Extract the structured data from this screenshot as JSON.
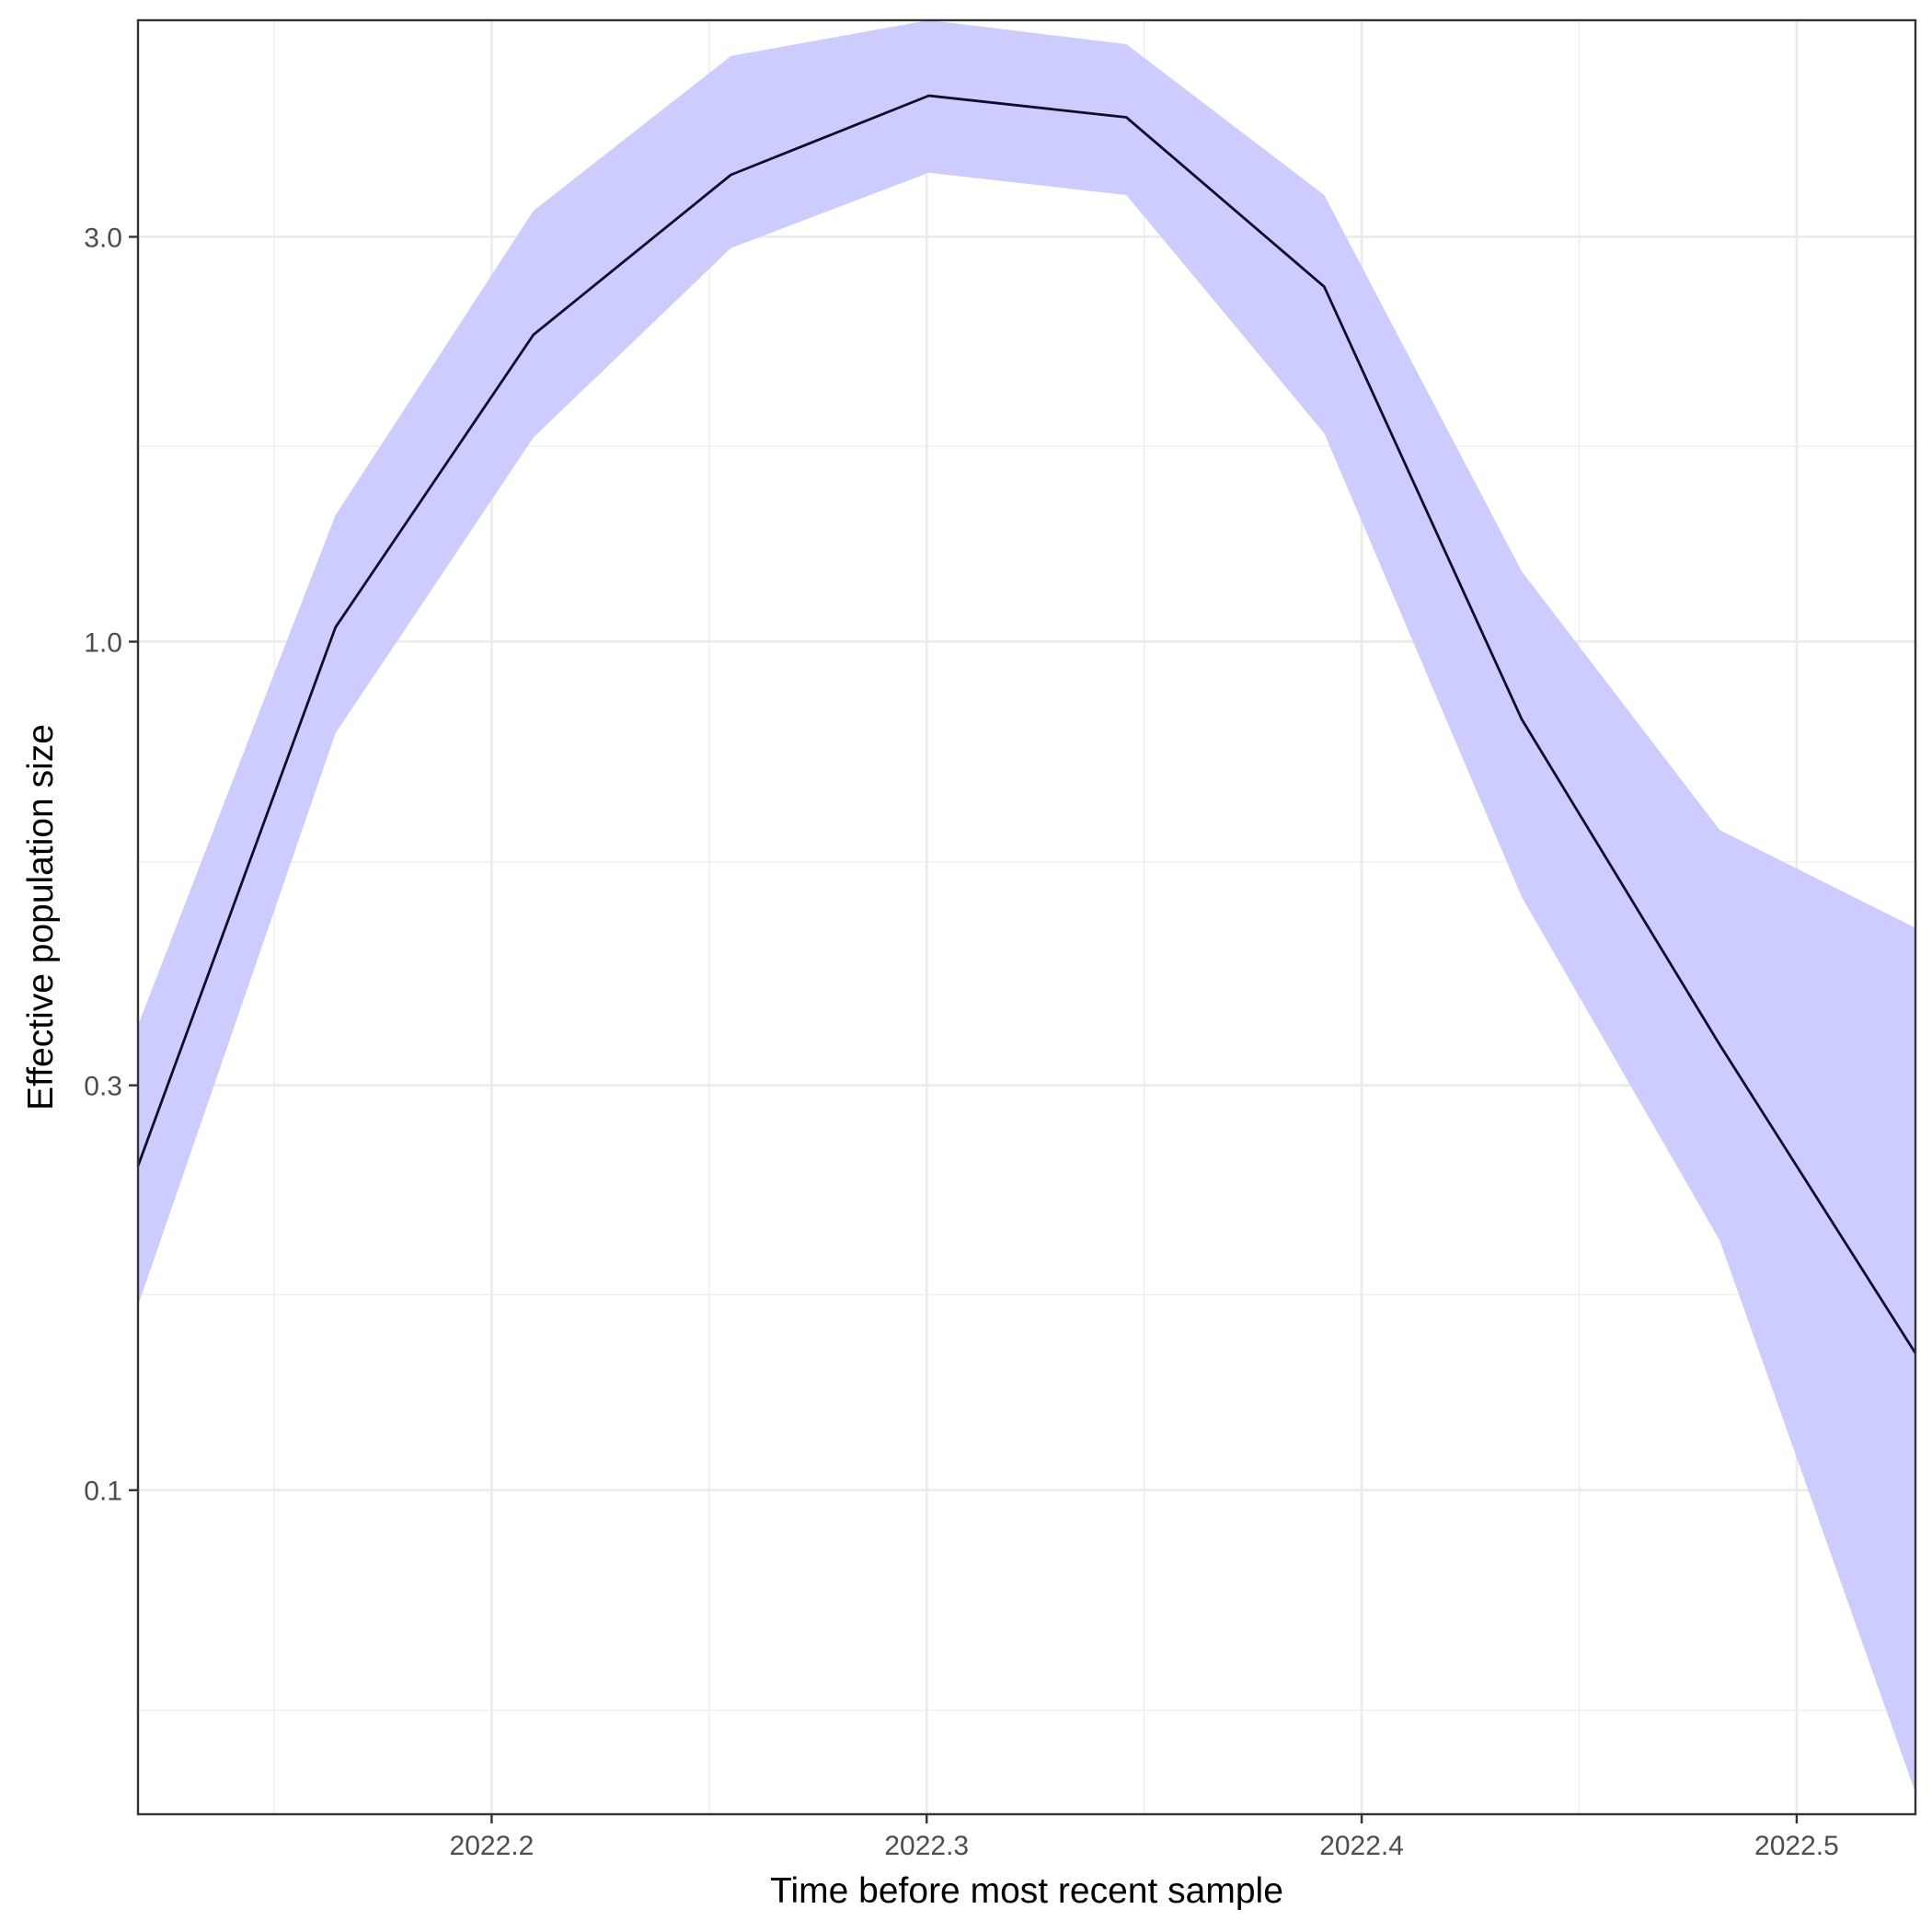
{
  "chart_data": {
    "type": "area",
    "title": "",
    "xlabel": "Time before most recent sample",
    "ylabel": "Effective population size",
    "y_scale": "log",
    "xlim": [
      2022.1187,
      2022.5273
    ],
    "ylim": [
      0.0415,
      5.4
    ],
    "x_ticks": [
      2022.2,
      2022.3,
      2022.4,
      2022.5
    ],
    "x_tick_labels": [
      "2022.2",
      "2022.3",
      "2022.4",
      "2022.5"
    ],
    "x_minor_ticks": [
      2022.15,
      2022.25,
      2022.35,
      2022.45
    ],
    "y_ticks": [
      0.1,
      0.3,
      1.0,
      3.0
    ],
    "y_tick_labels": [
      "0.1",
      "0.3",
      "1.0",
      "3.0"
    ],
    "y_minor_ticks": [
      0.055,
      0.17,
      0.55,
      1.7,
      5.5
    ],
    "grid": true,
    "colors": {
      "ribbon": "#ccccff",
      "line": "#0d0d2b",
      "grid": "#ebebeb",
      "panel_border": "#333333",
      "tick_text": "#4d4d4d"
    },
    "series": [
      {
        "x": [
          2022.1187,
          2022.1641,
          2022.2096,
          2022.255,
          2022.3005,
          2022.3459,
          2022.3914,
          2022.4368,
          2022.4823,
          2022.5273
        ],
        "y": [
          0.241,
          1.04,
          2.3,
          3.55,
          4.4,
          4.15,
          2.62,
          0.81,
          0.335,
          0.145
        ]
      }
    ],
    "ribbon": {
      "x": [
        2022.1187,
        2022.1641,
        2022.2096,
        2022.255,
        2022.3005,
        2022.3459,
        2022.3914,
        2022.4368,
        2022.4823,
        2022.5273
      ],
      "lower": [
        0.165,
        0.78,
        1.74,
        2.91,
        3.57,
        3.36,
        1.76,
        0.5,
        0.197,
        0.044
      ],
      "upper": [
        0.353,
        1.41,
        3.22,
        4.9,
        5.4,
        5.06,
        3.36,
        1.21,
        0.6,
        0.46
      ]
    }
  }
}
